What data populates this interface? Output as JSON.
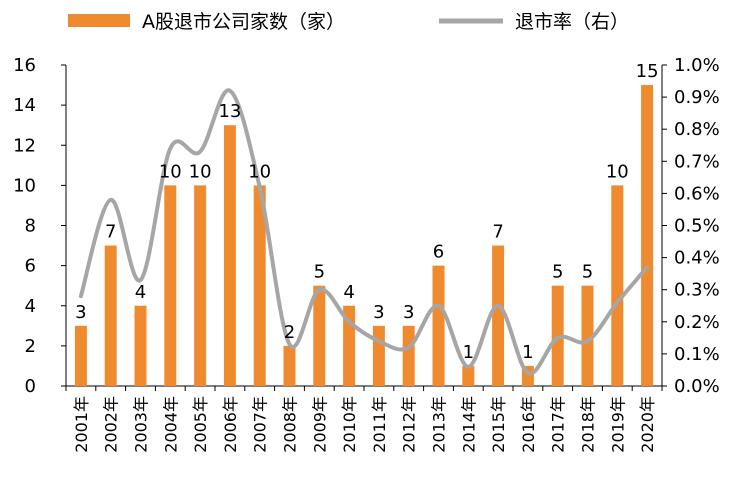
{
  "legend": {
    "bar_label": "A股退市公司家数（家）",
    "line_label": "退市率（右）"
  },
  "colors": {
    "bar": "#F08A2E",
    "line": "#A6A6A6",
    "axis": "#000000"
  },
  "chart_data": {
    "type": "bar",
    "categories": [
      "2001年",
      "2002年",
      "2003年",
      "2004年",
      "2005年",
      "2006年",
      "2007年",
      "2008年",
      "2009年",
      "2010年",
      "2011年",
      "2012年",
      "2013年",
      "2014年",
      "2015年",
      "2016年",
      "2017年",
      "2018年",
      "2019年",
      "2020年"
    ],
    "series": [
      {
        "name": "A股退市公司家数（家）",
        "type": "bar",
        "axis": "left",
        "values": [
          3,
          7,
          4,
          10,
          10,
          13,
          10,
          2,
          5,
          4,
          3,
          3,
          6,
          1,
          7,
          1,
          5,
          5,
          10,
          15
        ]
      },
      {
        "name": "退市率（右）",
        "type": "line",
        "axis": "right",
        "values": [
          0.0028,
          0.0058,
          0.0033,
          0.0074,
          0.0073,
          0.0092,
          0.0062,
          0.0013,
          0.003,
          0.002,
          0.0014,
          0.0012,
          0.0025,
          0.0006,
          0.0025,
          0.0004,
          0.0015,
          0.0014,
          0.0026,
          0.0037
        ]
      }
    ],
    "y_left": {
      "min": 0,
      "max": 16,
      "step": 2,
      "ticks": [
        "0",
        "2",
        "4",
        "6",
        "8",
        "10",
        "12",
        "14",
        "16"
      ]
    },
    "y_right": {
      "min": 0,
      "max": 0.01,
      "step": 0.001,
      "ticks": [
        "0.0%",
        "0.1%",
        "0.2%",
        "0.3%",
        "0.4%",
        "0.5%",
        "0.6%",
        "0.7%",
        "0.8%",
        "0.9%",
        "1.0%"
      ]
    },
    "data_labels": [
      "3",
      "7",
      "4",
      "10",
      "10",
      "13",
      "10",
      "2",
      "5",
      "4",
      "3",
      "3",
      "6",
      "1",
      "7",
      "1",
      "5",
      "5",
      "10",
      "15"
    ],
    "legend_position": "top",
    "grid": false
  }
}
